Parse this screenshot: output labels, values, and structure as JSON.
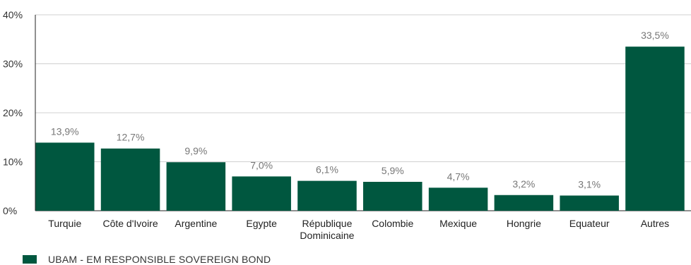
{
  "chart_data": {
    "type": "bar",
    "categories": [
      "Turquie",
      "Côte d'Ivoire",
      "Argentine",
      "Egypte",
      "République\nDominicaine",
      "Colombie",
      "Mexique",
      "Hongrie",
      "Equateur",
      "Autres"
    ],
    "series": [
      {
        "name": "UBAM - EM RESPONSIBLE SOVEREIGN BOND",
        "values": [
          13.9,
          12.7,
          9.9,
          7.0,
          6.1,
          5.9,
          4.7,
          3.2,
          3.1,
          33.5
        ],
        "value_labels": [
          "13,9%",
          "12,7%",
          "9,9%",
          "7,0%",
          "6,1%",
          "5,9%",
          "4,7%",
          "3,2%",
          "3,1%",
          "33,5%"
        ],
        "color": "#00573f"
      }
    ],
    "ylim": [
      0,
      40
    ],
    "yticks": [
      0,
      10,
      20,
      30,
      40
    ],
    "ytick_labels": [
      "0%",
      "10%",
      "20%",
      "30%",
      "40%"
    ],
    "grid": "horizontal",
    "legend_position": "bottom-left",
    "colors": {
      "bar": "#00573f",
      "grid": "#d0d0d0",
      "axis": "#222222"
    }
  },
  "legend": {
    "label": "UBAM - EM RESPONSIBLE SOVEREIGN BOND",
    "swatch_icon": "square-swatch"
  }
}
